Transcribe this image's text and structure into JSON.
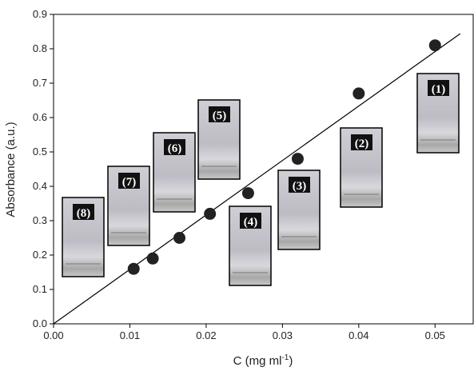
{
  "chart_data": {
    "type": "scatter",
    "xlabel": [
      "C (mg ml",
      "-1",
      ")"
    ],
    "ylabel": "Absorbance (a.u.)",
    "x": [
      0.0105,
      0.013,
      0.0165,
      0.0205,
      0.0255,
      0.032,
      0.04,
      0.05
    ],
    "values": [
      0.16,
      0.19,
      0.25,
      0.32,
      0.38,
      0.48,
      0.67,
      0.81
    ],
    "color": "#222222",
    "fit_line": {
      "x": [
        0,
        0.0533
      ],
      "y": [
        0,
        0.844
      ]
    },
    "xlim": [
      0,
      0.055
    ],
    "ylim": [
      0,
      0.9
    ],
    "xticks": [
      {
        "value": 0,
        "label": "0.00"
      },
      {
        "value": 0.01,
        "label": "0.01"
      },
      {
        "value": 0.02,
        "label": "0.02"
      },
      {
        "value": 0.03,
        "label": "0.03"
      },
      {
        "value": 0.04,
        "label": "0.04"
      },
      {
        "value": 0.05,
        "label": "0.05"
      }
    ],
    "yticks": [
      {
        "value": 0,
        "label": "0.0"
      },
      {
        "value": 0.1,
        "label": "0.1"
      },
      {
        "value": 0.2,
        "label": "0.2"
      },
      {
        "value": 0.3,
        "label": "0.3"
      },
      {
        "value": 0.4,
        "label": "0.4"
      },
      {
        "value": 0.5,
        "label": "0.5"
      },
      {
        "value": 0.6,
        "label": "0.6"
      },
      {
        "value": 0.7,
        "label": "0.7"
      },
      {
        "value": 0.8,
        "label": "0.8"
      },
      {
        "value": 0.9,
        "label": "0.9"
      }
    ],
    "annotations": [
      "(1)",
      "(2)",
      "(3)",
      "(4)",
      "(5)",
      "(6)",
      "(7)",
      "(8)"
    ]
  }
}
